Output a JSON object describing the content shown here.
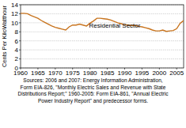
{
  "chart_data": {
    "type": "line",
    "y_label": "Cents Per KiloWatthour",
    "x": [
      1960,
      1961,
      1962,
      1963,
      1964,
      1965,
      1966,
      1967,
      1968,
      1969,
      1970,
      1971,
      1972,
      1973,
      1974,
      1975,
      1976,
      1977,
      1978,
      1979,
      1980,
      1981,
      1982,
      1983,
      1984,
      1985,
      1986,
      1987,
      1988,
      1989,
      1990,
      1991,
      1992,
      1993,
      1994,
      1995,
      1996,
      1997,
      1998,
      1999,
      2000,
      2001,
      2002,
      2003,
      2004,
      2005,
      2006,
      2007
    ],
    "series": [
      {
        "name": "Residential Sector",
        "color": "#c8741e",
        "values": [
          12.1,
          12.1,
          12.0,
          11.6,
          11.3,
          11.0,
          10.5,
          10.1,
          9.7,
          9.3,
          9.0,
          8.8,
          8.6,
          8.4,
          9.1,
          9.5,
          9.5,
          9.7,
          9.5,
          9.3,
          9.9,
          10.4,
          11.0,
          11.0,
          10.9,
          10.8,
          10.6,
          10.3,
          10.0,
          9.8,
          9.6,
          9.5,
          9.4,
          9.4,
          9.2,
          9.1,
          8.9,
          8.7,
          8.4,
          8.2,
          8.2,
          8.4,
          8.1,
          8.2,
          8.3,
          8.7,
          9.9,
          10.5
        ]
      }
    ],
    "xlim": [
      1960,
      2007
    ],
    "xticks": [
      1960,
      1965,
      1970,
      1975,
      1980,
      1985,
      1990,
      1995,
      2000,
      2005
    ],
    "ylim": [
      0,
      14
    ],
    "yticks": [
      0,
      2,
      4,
      6,
      8,
      10,
      12,
      14
    ],
    "grid": true,
    "source": [
      "Sources: 2006 and 2007: Energy Information Administration,",
      "Form EIA-826, \"Monthly Electric Sales and Revenue with State",
      "Distributions Report;\" 1960-2005: Form EIA-861, \"Annual Electric",
      "Power Industry Report\" and predecessor forms."
    ]
  }
}
